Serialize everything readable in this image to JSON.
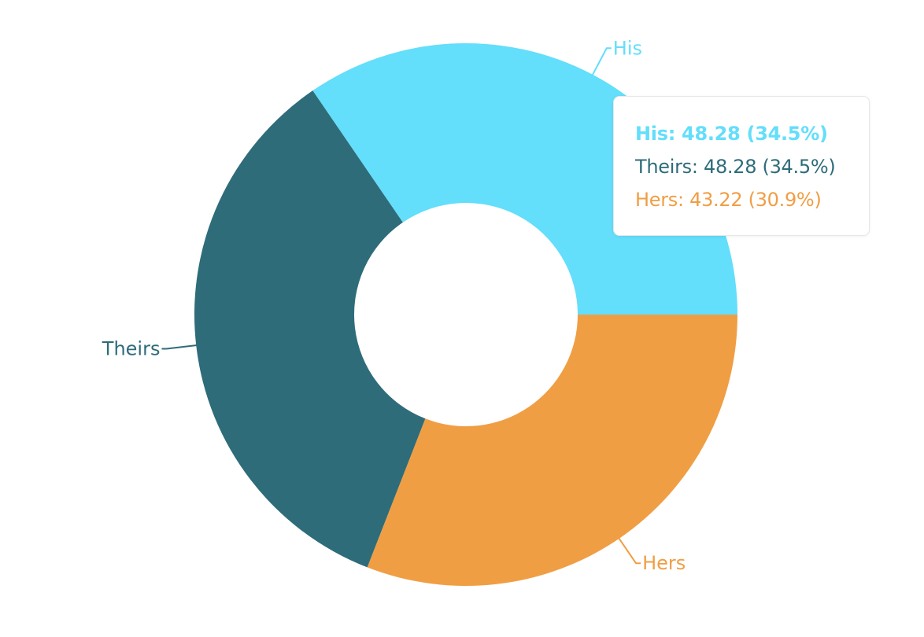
{
  "chart_data": {
    "type": "pie",
    "variant": "donut",
    "categories": [
      "His",
      "Hers",
      "Theirs"
    ],
    "values": [
      48.28,
      43.22,
      48.28
    ],
    "percentages": [
      "34.5%",
      "30.9%",
      "34.5%"
    ],
    "colors": [
      "#63DEFB",
      "#F09E44",
      "#2E6C7A"
    ],
    "legend": "none",
    "title": ""
  },
  "tooltip": {
    "rows": [
      {
        "label": "His: 48.28 (34.5%)",
        "color": "#63DEFB",
        "active": true
      },
      {
        "label": "Theirs: 48.28 (34.5%)",
        "color": "#2E6C7A",
        "active": false
      },
      {
        "label": "Hers: 43.22 (30.9%)",
        "color": "#F09E44",
        "active": false
      }
    ]
  }
}
